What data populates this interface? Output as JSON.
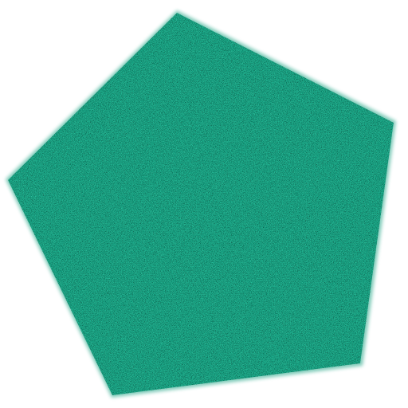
{
  "shape": {
    "kind": "pentagon",
    "fill_color": "#1fa383",
    "speckle_colors": [
      "#0b3a30",
      "#2fd8ab",
      "#3ee6bd"
    ],
    "texture": "noise-speckle",
    "edge": "soft-blur"
  },
  "background_color": "#ffffff"
}
